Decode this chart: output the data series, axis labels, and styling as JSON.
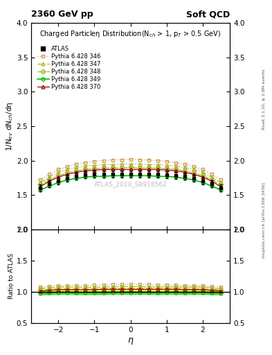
{
  "title_left": "2360 GeV pp",
  "title_right": "Soft QCD",
  "ylabel_main": "1/N$_{ev}$ dN$_{ch}$/dη",
  "ylabel_ratio": "Ratio to ATLAS",
  "xlabel": "η",
  "watermark": "ATLAS_2010_S8918562",
  "right_label_top": "Rivet 3.1.10, ≥ 2.8M events",
  "right_label_bot": "mcplots.cern.ch [arXiv:1306.3436]",
  "inner_title": "Charged Particleη Distribution(N$_{ch}$ > 1, p$_{T}$ > 0.5 GeV)",
  "eta": [
    -2.5,
    -2.25,
    -2.0,
    -1.75,
    -1.5,
    -1.25,
    -1.0,
    -0.75,
    -0.5,
    -0.25,
    0.0,
    0.25,
    0.5,
    0.75,
    1.0,
    1.25,
    1.5,
    1.75,
    2.0,
    2.25,
    2.5
  ],
  "atlas": [
    1.6,
    1.66,
    1.7,
    1.74,
    1.77,
    1.79,
    1.8,
    1.8,
    1.8,
    1.8,
    1.8,
    1.8,
    1.8,
    1.8,
    1.79,
    1.78,
    1.77,
    1.74,
    1.7,
    1.66,
    1.6
  ],
  "atlas_err": [
    0.05,
    0.05,
    0.05,
    0.05,
    0.05,
    0.05,
    0.05,
    0.05,
    0.05,
    0.05,
    0.05,
    0.05,
    0.05,
    0.05,
    0.05,
    0.05,
    0.05,
    0.05,
    0.05,
    0.05,
    0.05
  ],
  "p346": [
    1.72,
    1.8,
    1.87,
    1.91,
    1.95,
    1.97,
    1.99,
    2.0,
    2.01,
    2.01,
    2.02,
    2.01,
    2.01,
    2.0,
    1.99,
    1.97,
    1.95,
    1.91,
    1.87,
    1.8,
    1.72
  ],
  "p347": [
    1.68,
    1.76,
    1.83,
    1.87,
    1.9,
    1.92,
    1.93,
    1.94,
    1.94,
    1.95,
    1.95,
    1.95,
    1.94,
    1.94,
    1.93,
    1.92,
    1.9,
    1.87,
    1.83,
    1.76,
    1.68
  ],
  "p348": [
    1.65,
    1.72,
    1.78,
    1.82,
    1.85,
    1.87,
    1.88,
    1.89,
    1.89,
    1.89,
    1.9,
    1.89,
    1.89,
    1.89,
    1.88,
    1.87,
    1.85,
    1.82,
    1.78,
    1.72,
    1.65
  ],
  "p349": [
    1.57,
    1.63,
    1.68,
    1.72,
    1.74,
    1.76,
    1.77,
    1.77,
    1.78,
    1.78,
    1.78,
    1.78,
    1.78,
    1.77,
    1.77,
    1.76,
    1.74,
    1.72,
    1.68,
    1.63,
    1.57
  ],
  "p370": [
    1.62,
    1.7,
    1.76,
    1.8,
    1.83,
    1.85,
    1.86,
    1.87,
    1.87,
    1.87,
    1.87,
    1.87,
    1.87,
    1.87,
    1.86,
    1.85,
    1.83,
    1.8,
    1.76,
    1.7,
    1.62
  ],
  "color_atlas": "#000000",
  "color_346": "#c8a050",
  "color_347": "#b8b030",
  "color_348": "#90b820",
  "color_349": "#00bb00",
  "color_370": "#aa0000",
  "ylim_main": [
    1.0,
    4.0
  ],
  "ylim_ratio": [
    0.5,
    2.0
  ],
  "xlim": [
    -2.75,
    2.75
  ],
  "yticks_main": [
    1.0,
    1.5,
    2.0,
    2.5,
    3.0,
    3.5,
    4.0
  ],
  "yticks_ratio": [
    0.5,
    1.0,
    1.5,
    2.0
  ],
  "xticks": [
    -2,
    -1,
    0,
    1,
    2
  ]
}
